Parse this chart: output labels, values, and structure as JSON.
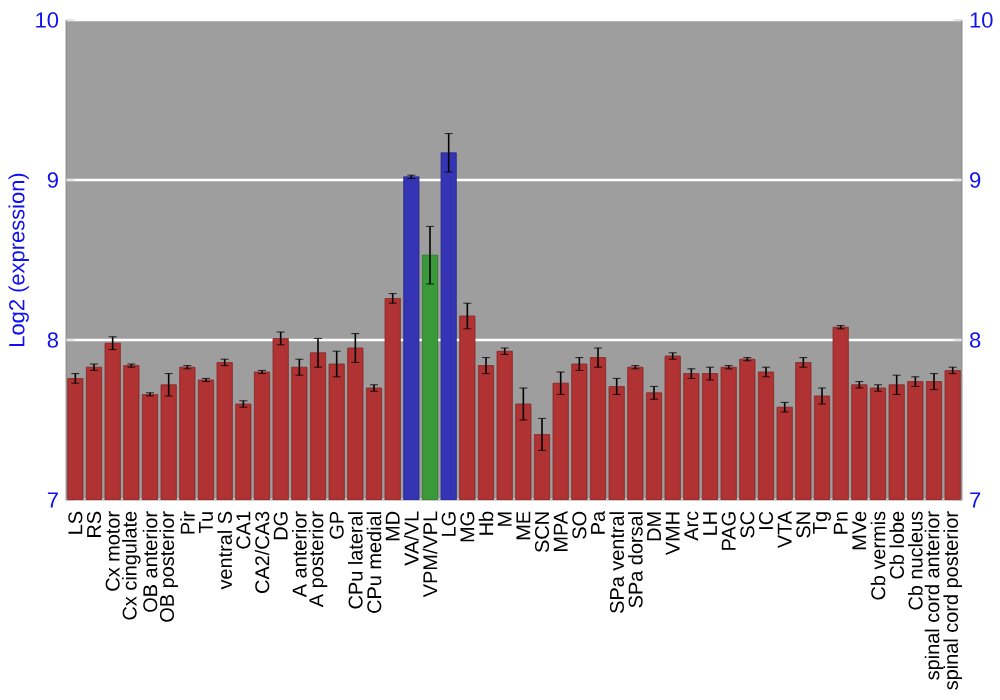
{
  "chart_data": {
    "type": "bar",
    "ylabel": "Log2 (expression)",
    "categories": [
      "LS",
      "RS",
      "Cx motor",
      "Cx cingulate",
      "OB anterior",
      "OB posterior",
      "Pir",
      "Tu",
      "ventral S",
      "CA1",
      "CA2/CA3",
      "DG",
      "A anterior",
      "A posterior",
      "GP",
      "CPu lateral",
      "CPu medial",
      "MD",
      "VA/VL",
      "VPM/VPL",
      "LG",
      "MG",
      "Hb",
      "M",
      "ME",
      "SCN",
      "MPA",
      "SO",
      "Pa",
      "SPa ventral",
      "SPa dorsal",
      "DM",
      "VMH",
      "Arc",
      "LH",
      "PAG",
      "SC",
      "IC",
      "VTA",
      "SN",
      "Tg",
      "Pn",
      "MVe",
      "Cb vermis",
      "Cb lobe",
      "Cb nucleus",
      "spinal cord anterior",
      "spinal cord posterior"
    ],
    "values": [
      7.76,
      7.83,
      7.98,
      7.84,
      7.66,
      7.72,
      7.83,
      7.75,
      7.86,
      7.6,
      7.8,
      8.01,
      7.83,
      7.92,
      7.85,
      7.95,
      7.7,
      8.26,
      9.02,
      8.53,
      9.17,
      8.15,
      7.84,
      7.93,
      7.6,
      7.41,
      7.73,
      7.85,
      7.89,
      7.71,
      7.83,
      7.67,
      7.9,
      7.79,
      7.79,
      7.83,
      7.88,
      7.8,
      7.58,
      7.86,
      7.65,
      8.08,
      7.72,
      7.7,
      7.72,
      7.74,
      7.74,
      7.81
    ],
    "errors": [
      0.03,
      0.02,
      0.04,
      0.01,
      0.01,
      0.07,
      0.01,
      0.01,
      0.02,
      0.02,
      0.01,
      0.04,
      0.05,
      0.09,
      0.08,
      0.09,
      0.02,
      0.03,
      0.01,
      0.18,
      0.12,
      0.08,
      0.05,
      0.02,
      0.1,
      0.1,
      0.07,
      0.04,
      0.06,
      0.05,
      0.01,
      0.04,
      0.02,
      0.03,
      0.04,
      0.01,
      0.01,
      0.03,
      0.03,
      0.03,
      0.05,
      0.01,
      0.02,
      0.02,
      0.06,
      0.03,
      0.05,
      0.02
    ],
    "colors": [
      "#b03232",
      "#b03232",
      "#b03232",
      "#b03232",
      "#b03232",
      "#b03232",
      "#b03232",
      "#b03232",
      "#b03232",
      "#b03232",
      "#b03232",
      "#b03232",
      "#b03232",
      "#b03232",
      "#b03232",
      "#b03232",
      "#b03232",
      "#b03232",
      "#3434b4",
      "#3a9a3a",
      "#3434b4",
      "#b03232",
      "#b03232",
      "#b03232",
      "#b03232",
      "#b03232",
      "#b03232",
      "#b03232",
      "#b03232",
      "#b03232",
      "#b03232",
      "#b03232",
      "#b03232",
      "#b03232",
      "#b03232",
      "#b03232",
      "#b03232",
      "#b03232",
      "#b03232",
      "#b03232",
      "#b03232",
      "#b03232",
      "#b03232",
      "#b03232",
      "#b03232",
      "#b03232",
      "#b03232",
      "#b03232"
    ],
    "ylim": [
      7,
      10
    ],
    "yticks": [
      7,
      8,
      9,
      10
    ],
    "y2lim": [
      7,
      10
    ],
    "y2ticks": [
      7,
      8,
      9,
      10
    ],
    "grid": "y"
  }
}
